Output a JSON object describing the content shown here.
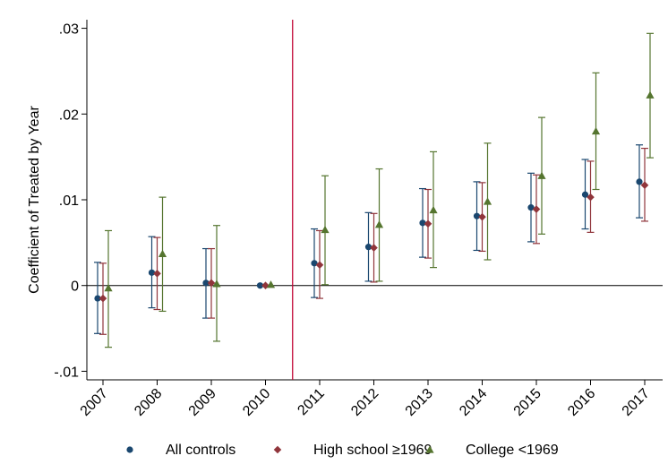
{
  "chart_data": {
    "type": "scatter",
    "title": "",
    "xlabel": "",
    "ylabel": "Coefficient of Treated by Year",
    "categories": [
      "2007",
      "2008",
      "2009",
      "2010",
      "2011",
      "2012",
      "2013",
      "2014",
      "2015",
      "2016",
      "2017"
    ],
    "ylim": [
      -0.011,
      0.031
    ],
    "yticks": [
      -0.01,
      0,
      0.01,
      0.02,
      0.03
    ],
    "ytick_labels": [
      "-.01",
      "0",
      ".01",
      ".02",
      ".03"
    ],
    "reference_line_y": 0,
    "event_line_between": [
      "2010",
      "2011"
    ],
    "grid": false,
    "legend_position": "bottom",
    "series": [
      {
        "name": "All controls",
        "color": "#1a476f",
        "marker": "circle",
        "values": [
          -0.0015,
          0.0015,
          0.0003,
          0.0,
          0.0026,
          0.0045,
          0.0073,
          0.0081,
          0.0091,
          0.0106,
          0.0121
        ],
        "ci_low": [
          -0.0056,
          -0.0026,
          -0.0038,
          0.0,
          -0.0014,
          0.0005,
          0.0033,
          0.0041,
          0.0051,
          0.0066,
          0.0079
        ],
        "ci_high": [
          0.0027,
          0.0057,
          0.0043,
          0.0,
          0.0066,
          0.0085,
          0.0113,
          0.0121,
          0.0131,
          0.0147,
          0.0164
        ]
      },
      {
        "name": "High school ≥1969",
        "color": "#90353b",
        "marker": "diamond",
        "values": [
          -0.0015,
          0.0014,
          0.0003,
          0.0,
          0.0024,
          0.0044,
          0.0072,
          0.008,
          0.0089,
          0.0103,
          0.0117
        ],
        "ci_low": [
          -0.0057,
          -0.0028,
          -0.0038,
          0.0,
          -0.0015,
          0.0004,
          0.0032,
          0.004,
          0.0049,
          0.0062,
          0.0075
        ],
        "ci_high": [
          0.0026,
          0.0056,
          0.0043,
          0.0,
          0.0064,
          0.0084,
          0.0112,
          0.012,
          0.0129,
          0.0145,
          0.016
        ]
      },
      {
        "name": "College <1969",
        "color": "#55752f",
        "marker": "triangle",
        "values": [
          -0.0003,
          0.0037,
          0.0002,
          0.0001,
          0.0065,
          0.0071,
          0.0088,
          0.0098,
          0.0128,
          0.018,
          0.0222
        ],
        "ci_low": [
          -0.0072,
          -0.003,
          -0.0065,
          0.0001,
          0.0001,
          0.0005,
          0.0021,
          0.003,
          0.006,
          0.0112,
          0.0149
        ],
        "ci_high": [
          0.0064,
          0.0103,
          0.007,
          0.0001,
          0.0128,
          0.0136,
          0.0156,
          0.0166,
          0.0196,
          0.0248,
          0.0294
        ]
      }
    ]
  }
}
